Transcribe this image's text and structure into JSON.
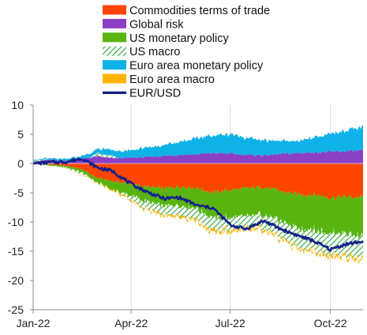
{
  "chart_data": {
    "type": "area",
    "title": "",
    "xlabel": "",
    "ylabel": "",
    "ylim": [
      -25,
      10
    ],
    "yticks": [
      10,
      5,
      0,
      -5,
      -10,
      -15,
      -20,
      -25
    ],
    "xlim": [
      "2022-01-01",
      "2022-10-31"
    ],
    "xticks": [
      {
        "label": "Jan-22",
        "date": "2022-01-01"
      },
      {
        "label": "Apr-22",
        "date": "2022-04-01"
      },
      {
        "label": "Jul-22",
        "date": "2022-07-01"
      },
      {
        "label": "Oct-22",
        "date": "2022-10-01"
      }
    ],
    "grid": "vertical lines at x ticks",
    "legend": "top",
    "x": [
      "2022-01-01",
      "2022-01-15",
      "2022-02-01",
      "2022-02-15",
      "2022-03-01",
      "2022-03-15",
      "2022-04-01",
      "2022-04-15",
      "2022-05-01",
      "2022-05-15",
      "2022-06-01",
      "2022-06-15",
      "2022-07-01",
      "2022-07-15",
      "2022-08-01",
      "2022-08-15",
      "2022-09-01",
      "2022-09-15",
      "2022-10-01",
      "2022-10-15",
      "2022-10-31"
    ],
    "series": [
      {
        "name": "Commodities terms of trade",
        "color": "#ff4500",
        "kind": "stack",
        "values": [
          0,
          -0.2,
          -0.4,
          -1.0,
          -2.5,
          -3.0,
          -3.5,
          -4.0,
          -4.3,
          -3.9,
          -4.2,
          -5.0,
          -4.5,
          -4.3,
          -4.0,
          -4.7,
          -5.3,
          -5.3,
          -5.8,
          -5.7,
          -5.8
        ]
      },
      {
        "name": "Global risk",
        "color": "#8b3fc6",
        "kind": "stack",
        "values": [
          0.3,
          0.6,
          0.5,
          0.8,
          1.2,
          0.9,
          1.0,
          1.1,
          1.3,
          1.5,
          1.6,
          1.8,
          1.7,
          1.5,
          1.4,
          1.6,
          1.8,
          1.9,
          2.0,
          2.1,
          2.2
        ]
      },
      {
        "name": "US monetary policy",
        "color": "#59b40f",
        "kind": "stack",
        "values": [
          0,
          -0.1,
          -0.3,
          -0.5,
          -0.8,
          -1.5,
          -2.0,
          -2.5,
          -3.0,
          -3.4,
          -3.7,
          -4.3,
          -4.7,
          -4.8,
          -4.6,
          -5.2,
          -5.7,
          -6.0,
          -6.0,
          -6.3,
          -6.6
        ]
      },
      {
        "name": "US macro",
        "color": "#2aaa3f",
        "kind": "hatch",
        "values": [
          0.2,
          0.1,
          -0.2,
          -0.4,
          0.5,
          0.4,
          -0.8,
          -1.3,
          -1.5,
          -1.6,
          -1.8,
          -2.2,
          -2.1,
          -2.0,
          -2.3,
          -2.9,
          -3.2,
          -3.4,
          -3.6,
          -3.7,
          -3.8
        ]
      },
      {
        "name": "Euro area monetary policy",
        "color": "#0fb2e8",
        "kind": "stack",
        "values": [
          0.1,
          0.2,
          0.3,
          0.5,
          0.8,
          1.0,
          1.3,
          1.6,
          1.9,
          2.3,
          2.7,
          3.0,
          3.3,
          3.0,
          2.5,
          2.3,
          2.0,
          2.5,
          3.0,
          3.6,
          3.8
        ]
      },
      {
        "name": "Euro area macro",
        "color": "#ffb400",
        "kind": "stack",
        "values": [
          0,
          0,
          0,
          -0.1,
          -0.1,
          -0.2,
          -0.2,
          -0.2,
          -0.3,
          -0.3,
          -0.3,
          -0.4,
          -0.4,
          -0.4,
          -0.3,
          -0.3,
          -0.3,
          -0.3,
          -0.4,
          -0.4,
          -0.4
        ]
      },
      {
        "name": "EUR/USD",
        "color": "#13218a",
        "kind": "line",
        "values": [
          0,
          0.2,
          0.3,
          0.9,
          -0.7,
          -1.3,
          -3.5,
          -4.8,
          -6.0,
          -5.8,
          -7.2,
          -7.6,
          -10.5,
          -11.2,
          -9.8,
          -11.1,
          -12.3,
          -13.2,
          -14.7,
          -13.8,
          -13.3
        ]
      }
    ]
  }
}
